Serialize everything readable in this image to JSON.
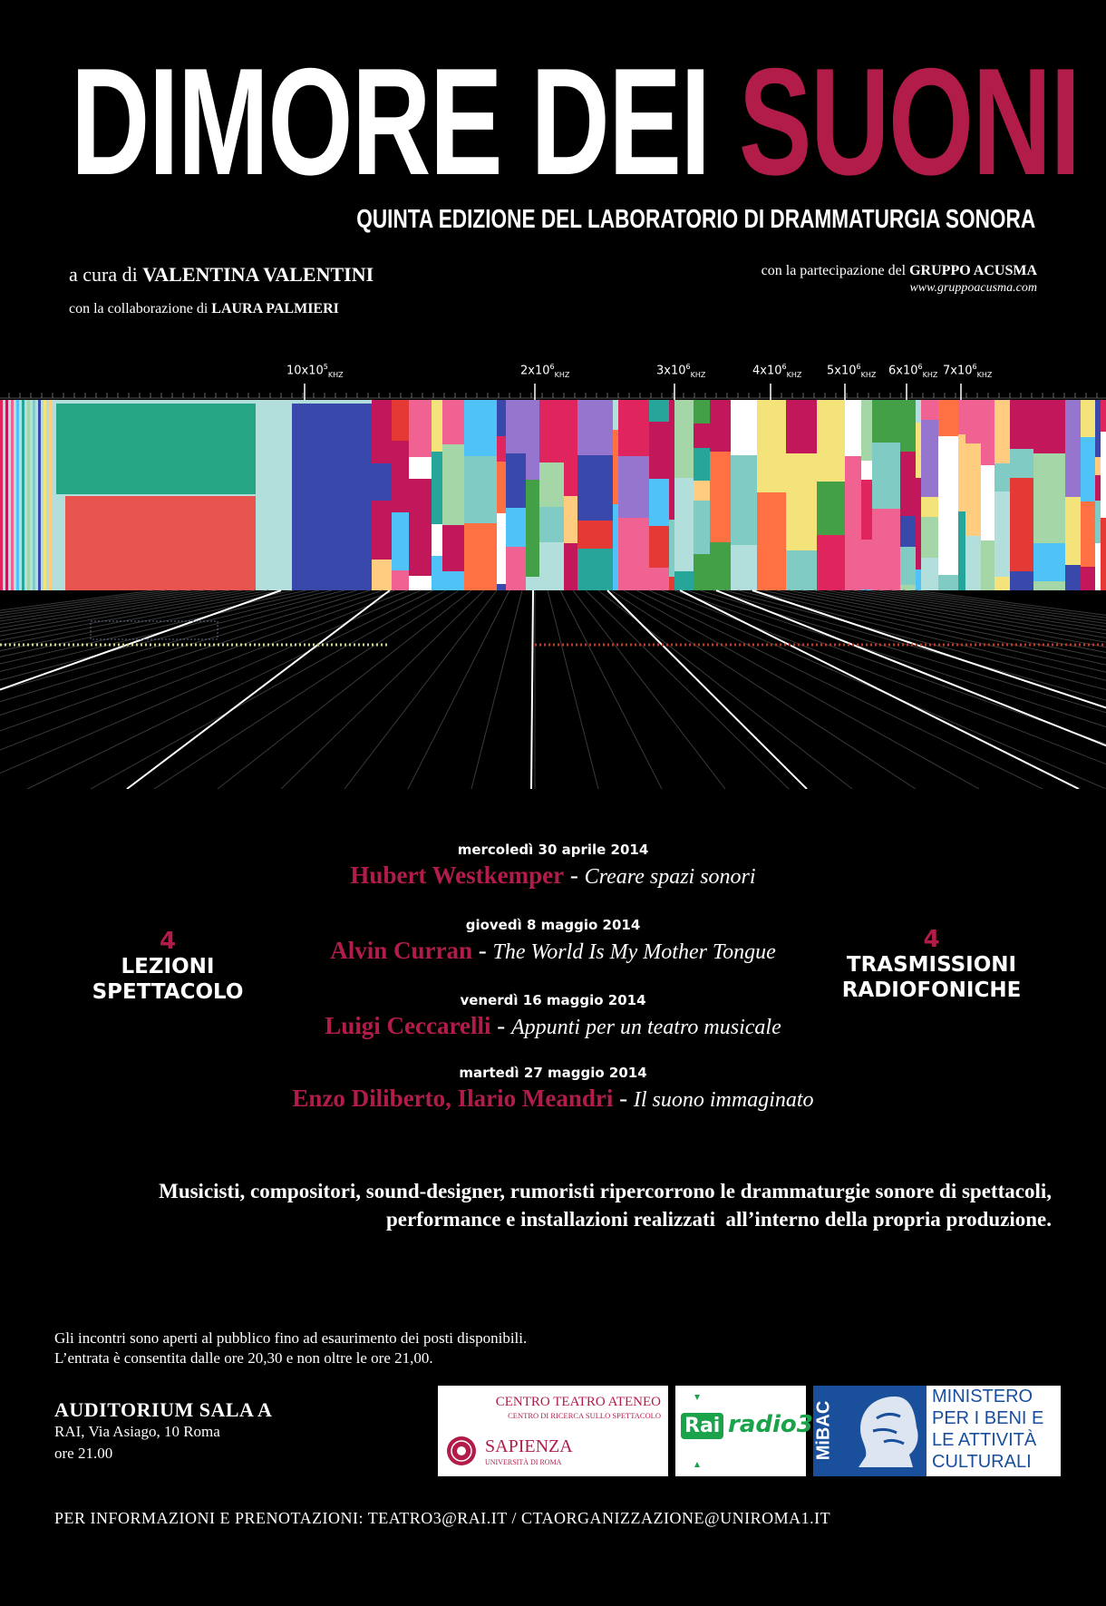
{
  "header": {
    "title_main": "DIMORE DEI",
    "title_accent": "SUONI",
    "subtitle": "QUINTA EDIZIONE DEL LABORATORIO DI DRAMMATURGIA SONORA",
    "curator_prefix": "a cura di",
    "curator_name": "VALENTINA VALENTINI",
    "collab_prefix": "con la collaborazione di",
    "collab_name": "LAURA PALMIERI",
    "participation_prefix": "con la partecipazione del",
    "participation_name": "GRUPPO ACUSMA",
    "website": "www.gruppoacusma.com"
  },
  "frequency_scale": [
    {
      "base": "10x10",
      "exp": "5",
      "unit": "KHZ"
    },
    {
      "base": "2x10",
      "exp": "6",
      "unit": "KHZ"
    },
    {
      "base": "3x10",
      "exp": "6",
      "unit": "KHZ"
    },
    {
      "base": "4x10",
      "exp": "6",
      "unit": "KHZ"
    },
    {
      "base": "5x10",
      "exp": "6",
      "unit": "KHZ"
    },
    {
      "base": "6x10",
      "exp": "6",
      "unit": "KHZ"
    },
    {
      "base": "7x10",
      "exp": "6",
      "unit": "KHZ"
    }
  ],
  "colors": {
    "accent": "#b21c48",
    "background": "#000000"
  },
  "left_block": {
    "number": "4",
    "line1": "LEZIONI",
    "line2": "SPETTACOLO"
  },
  "right_block": {
    "number": "4",
    "line1": "TRASMISSIONI",
    "line2": "RADIOFONICHE"
  },
  "events": [
    {
      "date": "mercoledì 30 aprile 2014",
      "speaker": "Hubert Westkemper",
      "title": "Creare spazi sonori"
    },
    {
      "date": "giovedì 8 maggio 2014",
      "speaker": "Alvin Curran",
      "title": "The World Is My Mother Tongue"
    },
    {
      "date": "venerdì 16 maggio 2014",
      "speaker": "Luigi Ceccarelli",
      "title": "Appunti per un teatro musicale"
    },
    {
      "date": "martedì 27 maggio 2014",
      "speaker": "Enzo Diliberto, Ilario Meandri",
      "title": "Il suono immaginato"
    }
  ],
  "separator": " - ",
  "description": {
    "line1": "Musicisti, compositori, sound-designer, rumoristi ripercorrono le drammaturgie sonore di spettacoli,",
    "line2": "performance e installazioni realizzati  all’interno della propria produzione."
  },
  "notes": {
    "line1": "Gli incontri sono aperti al pubblico fino ad esaurimento dei posti disponibili.",
    "line2": "L’entrata è consentita dalle ore 20,30 e non oltre le ore 21,00."
  },
  "venue": {
    "name": "AUDITORIUM SALA A",
    "address": "RAI, Via Asiago, 10 Roma",
    "time": "ore 21.00"
  },
  "logos": {
    "cta_line1": "CENTRO TEATRO ATENEO",
    "cta_line2": "CENTRO DI RICERCA SULLO SPETTACOLO",
    "sapienza": "SAPIENZA",
    "sapienza_sub": "UNIVERSITÀ DI ROMA",
    "rai_left": "Rai",
    "rai_right": "radio3",
    "mibac": "MiBAC",
    "ministero1": "MINISTERO",
    "ministero2": "PER I BENI E",
    "ministero3": "LE ATTIVITÀ",
    "ministero4": "CULTURALI"
  },
  "footer": {
    "label": "PER INFORMAZIONI E PRENOTAZIONI:",
    "contacts": "TEATRO3@RAI.IT / CTAORGANIZZAZIONE@UNIROMA1.IT"
  }
}
